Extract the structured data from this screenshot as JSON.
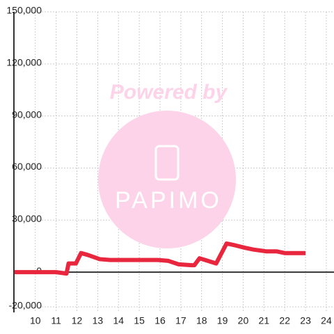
{
  "chart_data": {
    "type": "line",
    "x": [
      9,
      11,
      11.5,
      11.6,
      11.95,
      12.2,
      12.5,
      13.1,
      13.6,
      15.9,
      16.4,
      16.9,
      17.5,
      17.65,
      17.9,
      18.3,
      18.7,
      19.2,
      19.6,
      20.1,
      20.5,
      21.1,
      21.6,
      22,
      23
    ],
    "series": [
      {
        "name": "value",
        "color": "#e8263e",
        "values": [
          0,
          0,
          -800,
          5000,
          5000,
          11000,
          10000,
          7500,
          7000,
          7000,
          6500,
          4500,
          4000,
          4000,
          8000,
          6500,
          5000,
          16500,
          15500,
          14000,
          13000,
          12000,
          12000,
          11000,
          11000
        ]
      }
    ],
    "xlim": [
      8.97,
      24.37
    ],
    "xticks": [
      10,
      11,
      12,
      13,
      14,
      15,
      16,
      17,
      18,
      19,
      20,
      21,
      22,
      23,
      24
    ],
    "ylim": [
      -23200,
      150000
    ],
    "yticks": [
      {
        "value": -20000,
        "label": "-20,000"
      },
      0,
      {
        "value": 30000,
        "label": "30,000"
      },
      {
        "value": 60000,
        "label": "60,000"
      },
      {
        "value": 90000,
        "label": "90,000"
      },
      {
        "value": 120000,
        "label": "120,000"
      },
      {
        "value": 150000,
        "label": "150,000"
      }
    ],
    "grid": true
  },
  "watermark": {
    "text": "Powered by",
    "logo": "PAPIMO"
  }
}
